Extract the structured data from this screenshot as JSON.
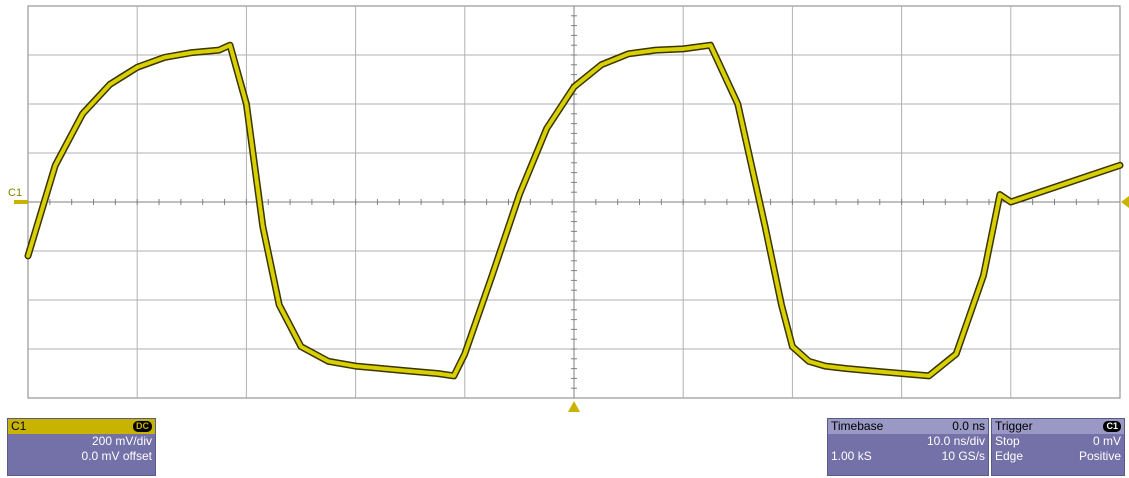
{
  "chart_data": {
    "type": "line",
    "title": "",
    "xlabel": "",
    "ylabel": "",
    "channel_label": "C1",
    "grid": true,
    "xlim": [
      -50,
      50
    ],
    "ylim": [
      -800,
      800
    ],
    "trace_color": "#d8d000",
    "series": [
      {
        "x": [
          -50,
          -47.5,
          -45,
          -42.5,
          -40,
          -37.5,
          -35,
          -32.5,
          -31.5,
          -30,
          -28.5,
          -27,
          -25,
          -22.5,
          -20,
          -17.5,
          -15,
          -12.5,
          -11,
          -10,
          -7.5,
          -5,
          -2.5,
          0,
          2.5,
          5,
          7.5,
          10,
          12.5,
          15,
          17.5,
          19,
          20,
          21.5,
          23,
          25,
          27.5,
          30,
          32.5,
          35,
          37.5,
          39,
          40,
          42.5,
          45,
          47.5,
          50
        ],
        "y": [
          -220,
          150,
          360,
          480,
          550,
          590,
          610,
          620,
          640,
          400,
          -100,
          -420,
          -590,
          -650,
          -670,
          -680,
          -690,
          -700,
          -710,
          -620,
          -300,
          30,
          300,
          470,
          560,
          605,
          620,
          625,
          640,
          400,
          -100,
          -420,
          -590,
          -650,
          -670,
          -680,
          -690,
          -700,
          -710,
          -620,
          -300,
          30,
          0,
          0,
          0,
          0,
          0
        ]
      }
    ]
  },
  "c1_panel": {
    "label": "C1",
    "coupling": "DC",
    "vdiv": "200 mV/div",
    "offset": "0.0 mV offset"
  },
  "timebase_panel": {
    "label": "Timebase",
    "delay": "0.0 ns",
    "tdiv": "10.0 ns/div",
    "samples": "1.00 kS",
    "rate": "10 GS/s"
  },
  "trigger_panel": {
    "label": "Trigger",
    "source": "C1",
    "mode": "Stop",
    "level": "0 mV",
    "type": "Edge",
    "slope": "Positive"
  }
}
